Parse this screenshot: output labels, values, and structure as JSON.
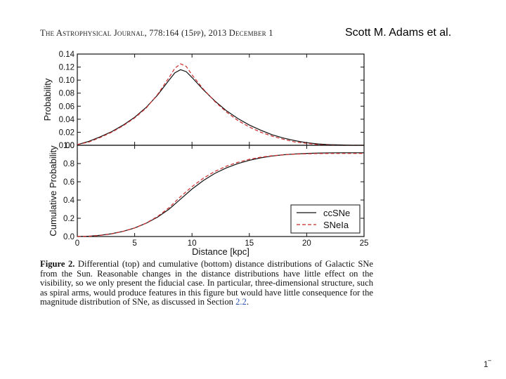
{
  "header": {
    "running_head": "The Astrophysical Journal, 778:164 (15pp), 2013 December 1",
    "author": "Scott M. Adams et al."
  },
  "chart_data": [
    {
      "type": "line",
      "panel": "top",
      "ylabel": "Probability",
      "xlim": [
        0,
        25
      ],
      "ylim": [
        0,
        0.14
      ],
      "y_ticks": [
        "0.00",
        "0.02",
        "0.04",
        "0.06",
        "0.08",
        "0.10",
        "0.12",
        "0.14"
      ],
      "grid": false,
      "series": [
        {
          "name": "ccSNe",
          "color": "#111111",
          "style": "solid",
          "x": [
            0,
            1,
            2,
            3,
            4,
            5,
            6,
            7,
            8,
            8.5,
            9,
            9.5,
            10,
            11,
            12,
            13,
            14,
            15,
            16,
            17,
            18,
            19,
            20,
            21,
            22,
            23,
            24,
            25
          ],
          "y": [
            0.001,
            0.006,
            0.013,
            0.021,
            0.031,
            0.043,
            0.058,
            0.077,
            0.1,
            0.111,
            0.116,
            0.113,
            0.104,
            0.085,
            0.068,
            0.053,
            0.041,
            0.031,
            0.023,
            0.016,
            0.011,
            0.007,
            0.004,
            0.002,
            0.001,
            0.0005,
            0.0,
            0.0
          ]
        },
        {
          "name": "SNeIa",
          "color": "#cc2a2a",
          "style": "dashed",
          "x": [
            0,
            1,
            2,
            3,
            4,
            5,
            6,
            7,
            8,
            8.5,
            9,
            9.5,
            10,
            11,
            12,
            13,
            14,
            15,
            16,
            17,
            18,
            19,
            20,
            21,
            22,
            23,
            24,
            25
          ],
          "y": [
            0.001,
            0.005,
            0.012,
            0.02,
            0.03,
            0.042,
            0.057,
            0.078,
            0.104,
            0.118,
            0.125,
            0.121,
            0.108,
            0.086,
            0.067,
            0.051,
            0.038,
            0.028,
            0.02,
            0.014,
            0.009,
            0.005,
            0.003,
            0.001,
            0.0005,
            0.0,
            0.0,
            0.0
          ]
        }
      ]
    },
    {
      "type": "line",
      "panel": "bottom",
      "xlabel": "Distance [kpc]",
      "ylabel": "Cumulative Probability",
      "xlim": [
        0,
        25
      ],
      "ylim": [
        0,
        1.0
      ],
      "x_ticks": [
        "0",
        "5",
        "10",
        "15",
        "20",
        "25"
      ],
      "y_ticks": [
        "0.0",
        "0.2",
        "0.4",
        "0.6",
        "0.8",
        "1.0"
      ],
      "grid": false,
      "legend": {
        "position": "lower-right",
        "entries": [
          "ccSNe",
          "SNeIa"
        ]
      },
      "series": [
        {
          "name": "ccSNe",
          "color": "#111111",
          "style": "solid",
          "x": [
            0,
            1,
            2,
            3,
            4,
            5,
            6,
            7,
            8,
            9,
            10,
            11,
            12,
            13,
            14,
            15,
            16,
            17,
            18,
            19,
            20,
            21,
            22,
            23,
            24,
            25
          ],
          "y": [
            0.0,
            0.004,
            0.014,
            0.031,
            0.057,
            0.094,
            0.145,
            0.212,
            0.3,
            0.41,
            0.52,
            0.615,
            0.692,
            0.752,
            0.799,
            0.835,
            0.862,
            0.882,
            0.896,
            0.905,
            0.911,
            0.915,
            0.917,
            0.918,
            0.918,
            0.918
          ]
        },
        {
          "name": "SNeIa",
          "color": "#cc2a2a",
          "style": "dashed",
          "x": [
            0,
            1,
            2,
            3,
            4,
            5,
            6,
            7,
            8,
            9,
            10,
            11,
            12,
            13,
            14,
            15,
            16,
            17,
            18,
            19,
            20,
            21,
            22,
            23,
            24,
            25
          ],
          "y": [
            0.0,
            0.003,
            0.012,
            0.029,
            0.056,
            0.094,
            0.147,
            0.219,
            0.316,
            0.438,
            0.546,
            0.64,
            0.714,
            0.771,
            0.814,
            0.846,
            0.869,
            0.885,
            0.896,
            0.903,
            0.907,
            0.909,
            0.91,
            0.91,
            0.91,
            0.91
          ]
        }
      ]
    }
  ],
  "caption": {
    "label": "Figure 2.",
    "text": "Differential (top) and cumulative (bottom) distance distributions of Galactic SNe from the Sun. Reasonable changes in the distance distributions have little effect on the visibility, so we only present the fiducial case. In particular, three-dimensional structure, such as spiral arms, would produce features in this figure but would have little consequence for the magnitude distribution of SNe, as discussed in Section ",
    "section_ref": "2.2",
    "end": "."
  },
  "page_mark": "1‾"
}
